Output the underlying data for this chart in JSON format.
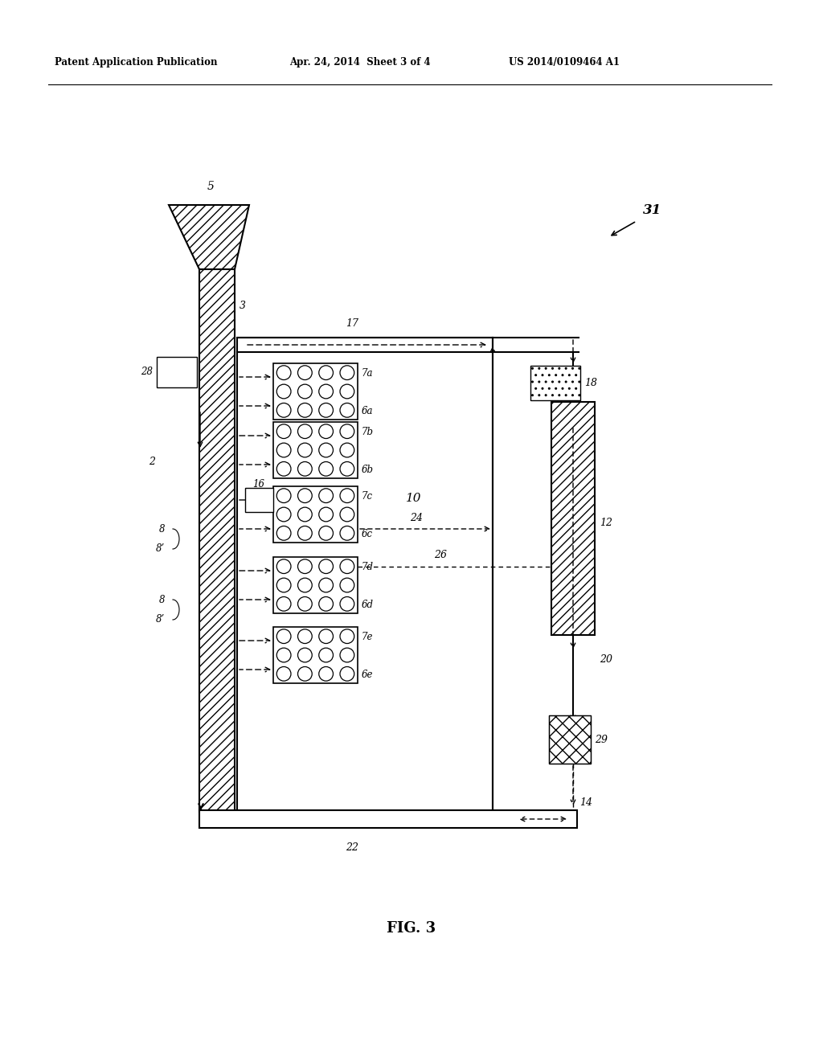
{
  "bg_color": "#ffffff",
  "header_left": "Patent Application Publication",
  "header_mid": "Apr. 24, 2014  Sheet 3 of 4",
  "header_right": "US 2014/0109464 A1",
  "caption": "FIG. 3",
  "labels": {
    "31": "31",
    "5": "5",
    "3": "3",
    "28": "28",
    "2": "2",
    "17": "17",
    "10": "10",
    "18": "18",
    "12": "12",
    "20": "20",
    "29": "29",
    "14": "14",
    "22": "22",
    "24": "24",
    "26": "26",
    "16": "16",
    "8": "8",
    "8p": "8’"
  },
  "beds": [
    {
      "top_label": "7a",
      "bot_label": "6a",
      "arr_top": "left",
      "arr_bot": "left"
    },
    {
      "top_label": "7b",
      "bot_label": "6b",
      "arr_top": "right",
      "arr_bot": "left"
    },
    {
      "top_label": "7c",
      "bot_label": "6c",
      "arr_top": "right",
      "arr_bot": "left"
    },
    {
      "top_label": "7d",
      "bot_label": "6d",
      "arr_top": "right",
      "arr_bot": "left"
    },
    {
      "top_label": "7e",
      "bot_label": "6e",
      "arr_top": "right",
      "arr_bot": "left"
    }
  ]
}
